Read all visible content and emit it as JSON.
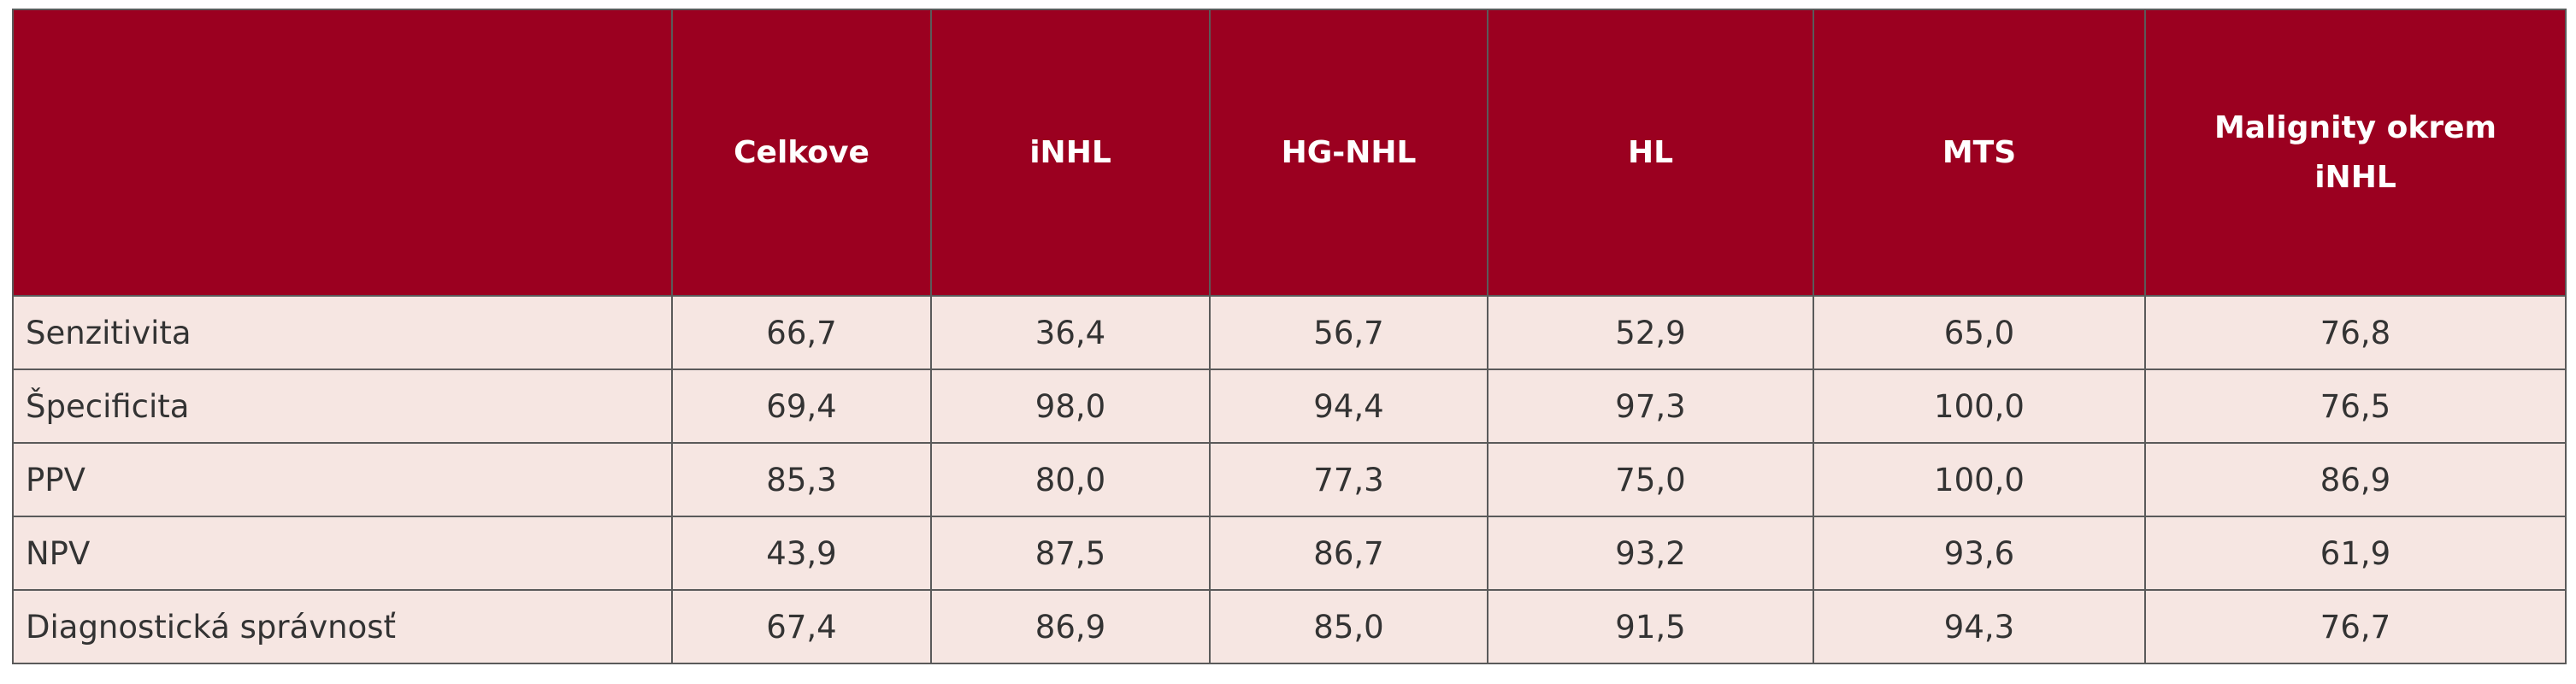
{
  "table": {
    "columns": [
      "Celkove",
      "iNHL",
      "HG-NHL",
      "HL",
      "MTS",
      "Malignity okrem iNHL"
    ],
    "rows": [
      {
        "label": "Senzitivita",
        "values": [
          "66,7",
          "36,4",
          "56,7",
          "52,9",
          "65,0",
          "76,8"
        ]
      },
      {
        "label": "Špecificita",
        "values": [
          "69,4",
          "98,0",
          "94,4",
          "97,3",
          "100,0",
          "76,5"
        ]
      },
      {
        "label": "PPV",
        "values": [
          "85,3",
          "80,0",
          "77,3",
          "75,0",
          "100,0",
          "86,9"
        ]
      },
      {
        "label": "NPV",
        "values": [
          "43,9",
          "87,5",
          "86,7",
          "93,2",
          "93,6",
          "61,9"
        ]
      },
      {
        "label": "Diagnostická správnosť",
        "values": [
          "67,4",
          "86,9",
          "85,0",
          "91,5",
          "94,3",
          "76,7"
        ]
      }
    ]
  }
}
